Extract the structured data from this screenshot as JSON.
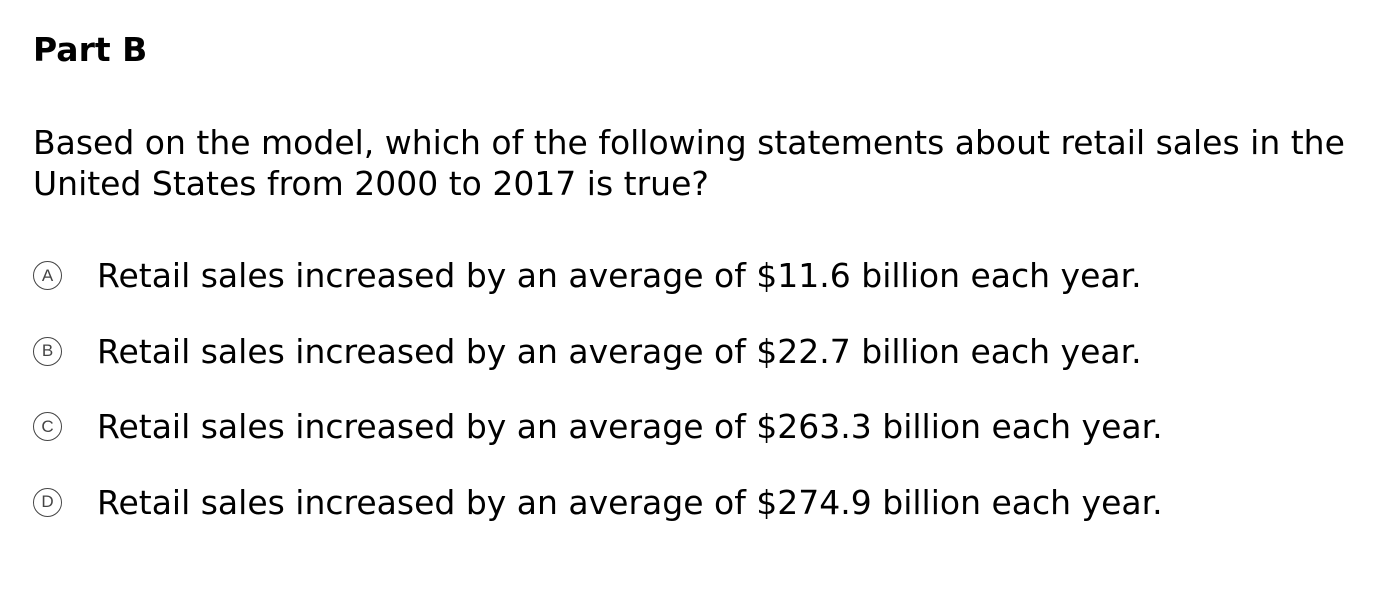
{
  "part": {
    "title": "Part B"
  },
  "question": {
    "text": "Based on the model, which of the following statements about retail sales in the United States from 2000 to 2017 is true?"
  },
  "options": [
    {
      "letter": "A",
      "text": "Retail sales increased by an average of $11.6 billion each year."
    },
    {
      "letter": "B",
      "text": "Retail sales increased by an average of $22.7 billion each year."
    },
    {
      "letter": "C",
      "text": "Retail sales increased by an average of $263.3 billion each year."
    },
    {
      "letter": "D",
      "text": "Retail sales increased by an average of $274.9 billion each year."
    }
  ]
}
